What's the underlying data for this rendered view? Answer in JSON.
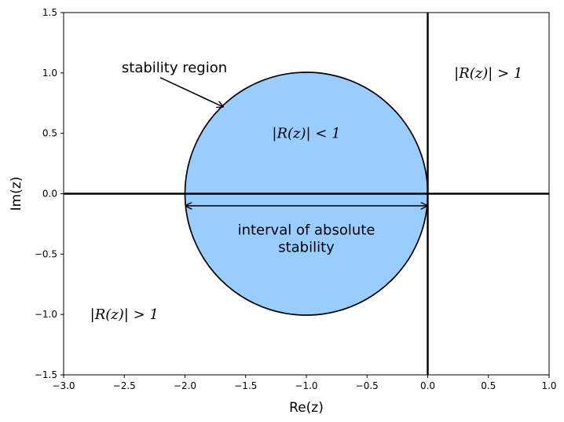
{
  "chart_data": {
    "type": "area",
    "xlabel": "Re(z)",
    "ylabel": "Im(z)",
    "xlim": [
      -3.0,
      1.0
    ],
    "ylim": [
      -1.5,
      1.5
    ],
    "x_ticks": [
      -3.0,
      -2.5,
      -2.0,
      -1.5,
      -1.0,
      -0.5,
      0.0,
      0.5,
      1.0
    ],
    "x_tick_labels": [
      "−3.0",
      "−2.5",
      "−2.0",
      "−1.5",
      "−1.0",
      "−0.5",
      "0.0",
      "0.5",
      "1.0"
    ],
    "y_ticks": [
      -1.5,
      -1.0,
      -0.5,
      0.0,
      0.5,
      1.0,
      1.5
    ],
    "y_tick_labels": [
      "−1.5",
      "−1.0",
      "−0.5",
      "0.0",
      "0.5",
      "1.0",
      "1.5"
    ],
    "grid": false,
    "stability_region": {
      "shape": "disk",
      "center": [
        -1.0,
        0.0
      ],
      "radius": 1.0,
      "fill_color": "#99ccff",
      "edge_color": "#000000"
    },
    "axes_lines": {
      "x": 0.0,
      "y": 0.0,
      "color": "#000000"
    },
    "interval_of_absolute_stability": {
      "from": -2.0,
      "to": 0.0,
      "y": -0.1
    },
    "annotations": [
      {
        "id": "inside",
        "text": "|R(z)| < 1",
        "x": -1.0,
        "y": 0.5
      },
      {
        "id": "outside-right",
        "text": "|R(z)| > 1",
        "x": 0.5,
        "y": 1.0
      },
      {
        "id": "outside-left",
        "text": "|R(z)| > 1",
        "x": -2.5,
        "y": -1.0
      },
      {
        "id": "region-label",
        "text": "stability region",
        "x": -2.1,
        "y": 1.0,
        "arrow_to": [
          -1.7,
          0.7
        ]
      },
      {
        "id": "interval-label",
        "lines": [
          "interval of absolute",
          "stability"
        ],
        "x": -1.0,
        "y": -0.35
      }
    ]
  }
}
